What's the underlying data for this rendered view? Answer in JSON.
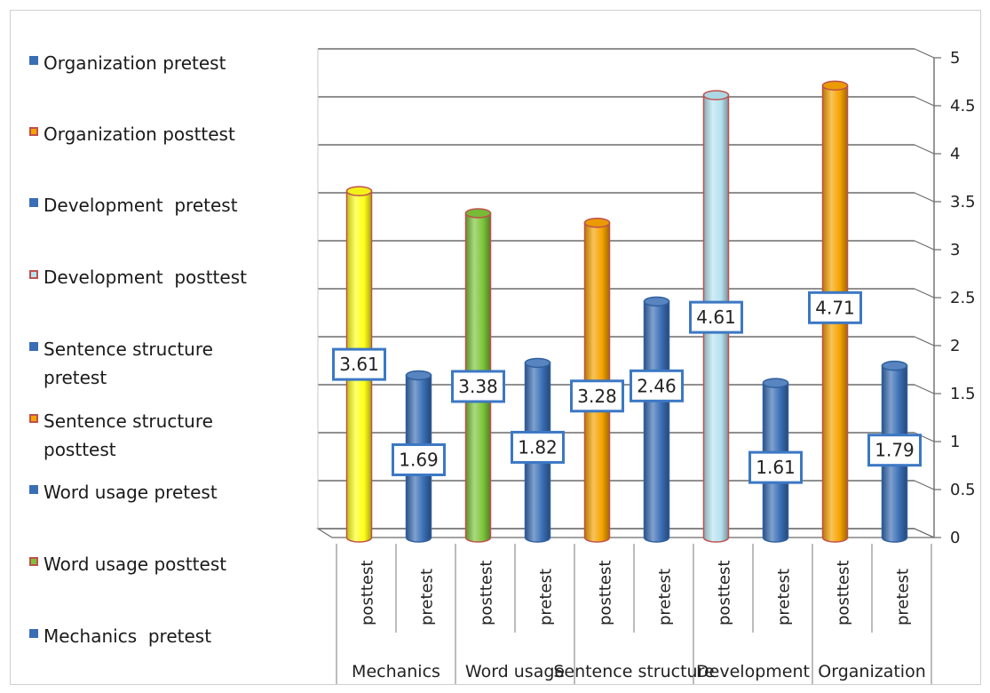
{
  "chart_data": {
    "type": "bar",
    "style": "3d-cylinder",
    "ylim": [
      0,
      5
    ],
    "yticks": [
      "0",
      "0.5",
      "1",
      "1.5",
      "2",
      "2.5",
      "3",
      "3.5",
      "4",
      "4.5",
      "5"
    ],
    "grid": true,
    "legend_position": "left",
    "groups": [
      "Mechanics",
      "Word usage",
      "Sentence structure",
      "Development",
      "Organization"
    ],
    "subcategories": [
      "posttest",
      "pretest"
    ],
    "series": [
      {
        "name": "Mechanics  pretest",
        "group": 0,
        "sub": 1,
        "value": 1.69,
        "color": "#3a6eb5"
      },
      {
        "name": "Mechanics posttest",
        "group": 0,
        "sub": 0,
        "value": 3.61,
        "color": "#ffff1a"
      },
      {
        "name": "Word usage pretest",
        "group": 1,
        "sub": 1,
        "value": 1.82,
        "color": "#3a6eb5"
      },
      {
        "name": "Word usage posttest",
        "group": 1,
        "sub": 0,
        "value": 3.38,
        "color": "#7cc43a"
      },
      {
        "name": "Sentence structure pretest",
        "group": 2,
        "sub": 1,
        "value": 2.46,
        "color": "#3a6eb5"
      },
      {
        "name": "Sentence structure posttest",
        "group": 2,
        "sub": 0,
        "value": 3.28,
        "color": "#f5a300"
      },
      {
        "name": "Development  pretest",
        "group": 3,
        "sub": 1,
        "value": 1.61,
        "color": "#3a6eb5"
      },
      {
        "name": "Development  posttest",
        "group": 3,
        "sub": 0,
        "value": 4.61,
        "color": "#b7e2f0"
      },
      {
        "name": "Organization pretest",
        "group": 4,
        "sub": 1,
        "value": 1.79,
        "color": "#3a6eb5"
      },
      {
        "name": "Organization posttest",
        "group": 4,
        "sub": 0,
        "value": 4.71,
        "color": "#f5a300"
      }
    ],
    "legend": [
      {
        "label": "Organization pretest",
        "color": "#3a6eb5",
        "border": "#3a6eb5"
      },
      {
        "label": "Organization posttest",
        "color": "#f5a300",
        "border": "#c0504d"
      },
      {
        "label": "Development  pretest",
        "color": "#3a6eb5",
        "border": "#3a6eb5"
      },
      {
        "label": "Development  posttest",
        "color": "#b7e2f0",
        "border": "#c0504d"
      },
      {
        "label": "Sentence structure\npretest",
        "color": "#3a6eb5",
        "border": "#3a6eb5"
      },
      {
        "label": "Sentence structure\nposttest",
        "color": "#f5a300",
        "border": "#c0504d"
      },
      {
        "label": "Word usage pretest",
        "color": "#3a6eb5",
        "border": "#3a6eb5"
      },
      {
        "label": "Word usage posttest",
        "color": "#7cc43a",
        "border": "#c0504d"
      },
      {
        "label": "Mechanics  pretest",
        "color": "#3a6eb5",
        "border": "#3a6eb5"
      }
    ]
  }
}
